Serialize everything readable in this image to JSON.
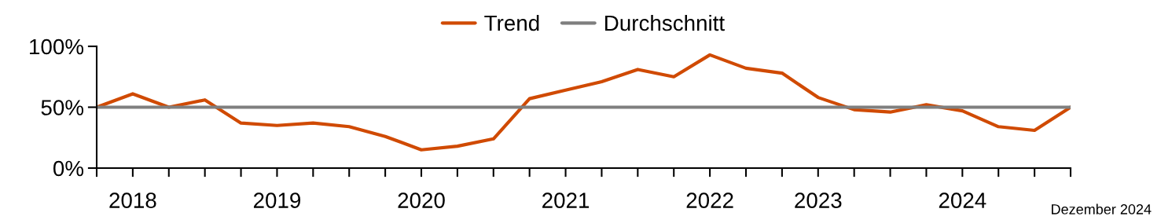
{
  "chart_data": {
    "type": "line",
    "categories": [
      null,
      "2018",
      null,
      null,
      null,
      "2019",
      null,
      null,
      null,
      "2020",
      null,
      null,
      null,
      "2021",
      null,
      null,
      null,
      "2022",
      null,
      null,
      "2023",
      null,
      null,
      null,
      "2024",
      null,
      null,
      null
    ],
    "series": [
      {
        "name": "Trend",
        "color": "#d04a02",
        "values": [
          50,
          61,
          50,
          56,
          37,
          35,
          37,
          34,
          26,
          15,
          18,
          24,
          57,
          64,
          71,
          81,
          75,
          93,
          82,
          78,
          58,
          48,
          46,
          52,
          47,
          34,
          31,
          50
        ]
      },
      {
        "name": "Durchschnitt",
        "color": "#7f7f7f",
        "values": [
          50,
          50,
          50,
          50,
          50,
          50,
          50,
          50,
          50,
          50,
          50,
          50,
          50,
          50,
          50,
          50,
          50,
          50,
          50,
          50,
          50,
          50,
          50,
          50,
          50,
          50,
          50,
          50
        ]
      }
    ],
    "ylim": [
      0,
      100
    ],
    "yticks": [
      {
        "value": 0,
        "label": "0%"
      },
      {
        "value": 50,
        "label": "50%"
      },
      {
        "value": 100,
        "label": "100%"
      }
    ],
    "grid": false,
    "legend": "top",
    "marker": "none",
    "line_style": "solid",
    "annotations": [
      "Dezember 2024"
    ]
  }
}
